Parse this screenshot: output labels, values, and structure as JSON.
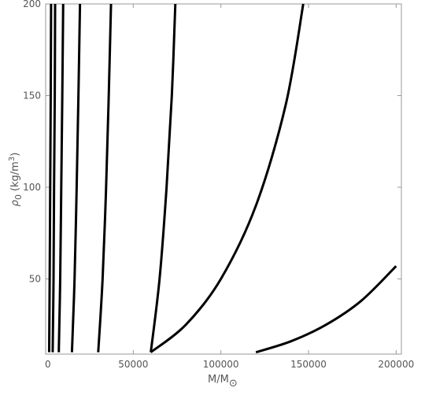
{
  "chart_data": {
    "type": "line",
    "title": "",
    "xlabel": "M/M",
    "xlabel_subscript": "⊙",
    "ylabel": "ρ",
    "ylabel_subscript": "0",
    "ylabel_units": "(kg/m",
    "ylabel_units_sup": "3",
    "ylabel_units_close": ")",
    "xlim": [
      0,
      203000
    ],
    "ylim": [
      9,
      200
    ],
    "xticks": [
      0,
      50000,
      100000,
      150000,
      200000
    ],
    "xtick_labels": [
      "0",
      "50000",
      "100000",
      "150000",
      "200000"
    ],
    "yticks": [
      50,
      100,
      150,
      200
    ],
    "ytick_labels": [
      "50",
      "100",
      "150",
      "200"
    ],
    "grid": false,
    "legend": "none",
    "series": [
      {
        "x": [
          2000,
          2300,
          2600,
          2900,
          3100
        ],
        "y": [
          10,
          50,
          100,
          150,
          200
        ]
      },
      {
        "x": [
          4000,
          4500,
          4800,
          5200,
          5400
        ],
        "y": [
          10,
          50,
          100,
          150,
          200
        ]
      },
      {
        "x": [
          7500,
          8300,
          8900,
          9500,
          10000
        ],
        "y": [
          10,
          50,
          100,
          150,
          200
        ]
      },
      {
        "x": [
          15000,
          16500,
          17700,
          18700,
          19600
        ],
        "y": [
          10,
          50,
          100,
          150,
          200
        ]
      },
      {
        "x": [
          30000,
          32500,
          34500,
          36000,
          37300
        ],
        "y": [
          10,
          50,
          100,
          150,
          200
        ]
      },
      {
        "x": [
          60000,
          65000,
          69000,
          72000,
          74000
        ],
        "y": [
          10,
          50,
          100,
          150,
          200
        ]
      },
      {
        "x": [
          60000,
          80000,
          100000,
          120000,
          137000,
          147000
        ],
        "y": [
          10,
          25,
          50,
          90,
          145,
          200
        ]
      },
      {
        "x": [
          120000,
          140000,
          160000,
          180000,
          200000
        ],
        "y": [
          10,
          16,
          25,
          38,
          57
        ]
      }
    ]
  }
}
